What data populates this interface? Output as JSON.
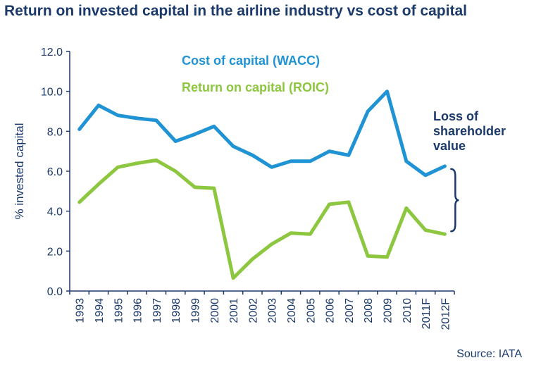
{
  "title": "Return on invested capital in the airline industry vs cost of capital",
  "source": "Source: IATA",
  "annotation": [
    "Loss of",
    "shareholder",
    "value"
  ],
  "chart_data": {
    "type": "line",
    "title": "Return on invested capital in the airline industry vs cost of capital",
    "xlabel": "",
    "ylabel": "% invested capital",
    "ylim": [
      0,
      12
    ],
    "yticks": [
      "0.0",
      "2.0",
      "4.0",
      "6.0",
      "8.0",
      "10.0",
      "12.0"
    ],
    "grid": false,
    "legend_position": "top-center",
    "categories": [
      "1993",
      "1994",
      "1995",
      "1996",
      "1997",
      "1998",
      "1999",
      "2000",
      "2001",
      "2002",
      "2003",
      "2004",
      "2005",
      "2006",
      "2007",
      "2008",
      "2009",
      "2010",
      "2011F",
      "2012F"
    ],
    "series": [
      {
        "name": "Cost of capital (WACC)",
        "color": "#1f93d3",
        "values": [
          8.1,
          9.3,
          8.8,
          8.65,
          8.55,
          7.5,
          7.85,
          8.25,
          7.25,
          6.8,
          6.2,
          6.5,
          6.5,
          7.0,
          6.8,
          9.0,
          10.0,
          6.5,
          5.8,
          6.25
        ]
      },
      {
        "name": "Return on capital (ROIC)",
        "color": "#8dc63f",
        "values": [
          4.45,
          5.35,
          6.2,
          6.4,
          6.55,
          6.0,
          5.2,
          5.15,
          0.65,
          1.6,
          2.35,
          2.9,
          2.85,
          4.35,
          4.45,
          1.75,
          1.7,
          4.15,
          3.05,
          2.85
        ]
      }
    ]
  }
}
